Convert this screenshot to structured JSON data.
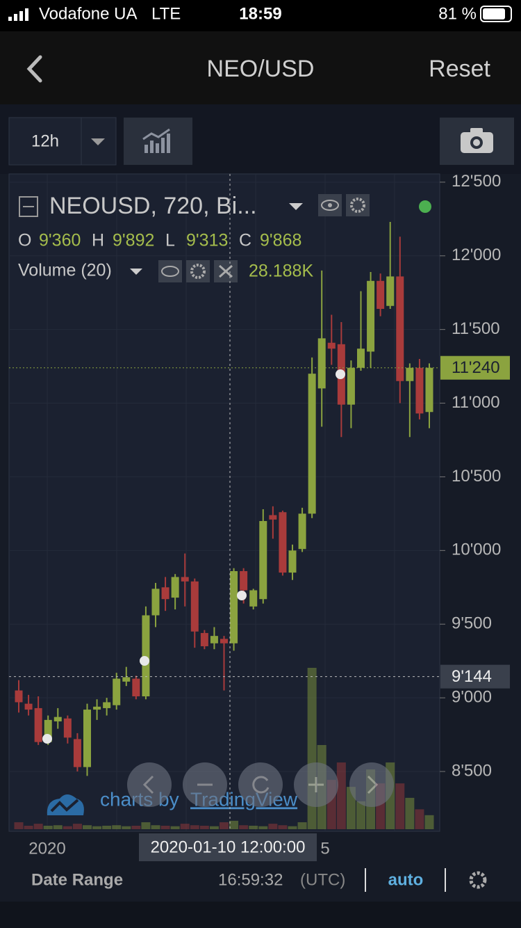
{
  "status_bar": {
    "carrier": "Vodafone UA",
    "network": "LTE",
    "time": "18:59",
    "battery": "81 %"
  },
  "nav": {
    "title": "NEO/USD",
    "reset": "Reset"
  },
  "toolbar": {
    "interval": "12h"
  },
  "chart": {
    "type": "candlestick",
    "legend": {
      "symbol": "NEOUSD, 720, Bi...",
      "ohlc": [
        {
          "key": "O",
          "value": "9'360"
        },
        {
          "key": "H",
          "value": "9'892"
        },
        {
          "key": "L",
          "value": "9'313"
        },
        {
          "key": "C",
          "value": "9'868"
        }
      ]
    },
    "volume_legend": {
      "name": "Volume (20)",
      "value": "28.188K"
    },
    "candles": {
      "open": [
        9050,
        8960,
        8930,
        8700,
        8840,
        8860,
        8720,
        8530,
        8920,
        8930,
        8950,
        9110,
        9130,
        9010,
        9560,
        9750,
        9680,
        9820,
        9790,
        9440,
        9370,
        9400,
        9370,
        9860,
        9620,
        9670,
        10240,
        10260,
        9850,
        10010,
        10250,
        11100,
        11410,
        11400,
        10990,
        11240,
        11350,
        11830,
        11660,
        11860,
        11150,
        11240,
        10940
      ],
      "high": [
        9120,
        9020,
        9010,
        8880,
        8930,
        8880,
        8760,
        8960,
        8990,
        9000,
        9170,
        9210,
        9150,
        9620,
        9780,
        9820,
        9840,
        9980,
        9810,
        9460,
        9480,
        9420,
        9880,
        9880,
        9740,
        10280,
        10300,
        10270,
        10040,
        10290,
        11310,
        11900,
        11600,
        11550,
        11290,
        11760,
        11890,
        11880,
        12230,
        12130,
        11270,
        11300,
        11270
      ],
      "low": [
        8900,
        8880,
        8680,
        8680,
        8790,
        8690,
        8500,
        8470,
        8850,
        8880,
        8920,
        9080,
        8990,
        8990,
        9480,
        9590,
        9600,
        9620,
        9340,
        9330,
        9330,
        9050,
        9320,
        9640,
        9600,
        9640,
        10080,
        9830,
        9800,
        9990,
        10220,
        10840,
        11260,
        10770,
        10830,
        11220,
        11240,
        11590,
        11640,
        11000,
        10770,
        10890,
        10830
      ],
      "close": [
        8970,
        8920,
        8700,
        8850,
        8870,
        8730,
        8530,
        8920,
        8940,
        8970,
        9130,
        9140,
        9010,
        9560,
        9740,
        9670,
        9820,
        9790,
        9450,
        9350,
        9420,
        9370,
        9860,
        9730,
        9730,
        10200,
        10210,
        9850,
        10000,
        10250,
        11200,
        11440,
        11370,
        10990,
        11240,
        11370,
        11830,
        11640,
        11860,
        11150,
        11240,
        10930,
        11240
      ]
    },
    "volume": [
      14,
      7,
      11,
      7,
      8,
      6,
      11,
      8,
      6,
      7,
      8,
      6,
      7,
      14,
      8,
      7,
      6,
      11,
      8,
      7,
      6,
      14,
      17,
      8,
      7,
      6,
      11,
      8,
      6,
      14,
      324,
      169,
      99,
      134,
      85,
      56,
      120,
      92,
      134,
      92,
      63,
      40,
      28.188
    ],
    "up_color": "#8ba33f",
    "down_color": "#a93b3b",
    "ylim": [
      8094,
      12556
    ],
    "yticks": [
      {
        "value": 8500,
        "label": "8'500"
      },
      {
        "value": 9000,
        "label": "9'000"
      },
      {
        "value": 9500,
        "label": "9'500"
      },
      {
        "value": 10000,
        "label": "10'000"
      },
      {
        "value": 10500,
        "label": "10'500"
      },
      {
        "value": 11000,
        "label": "11'000"
      },
      {
        "value": 11500,
        "label": "11'500"
      },
      {
        "value": 12000,
        "label": "12'000"
      },
      {
        "value": 12500,
        "label": "12'500"
      }
    ],
    "last_price": {
      "value": 11240,
      "label": "11'240"
    },
    "crosshair": {
      "price": {
        "value": 9144,
        "label": "9'144"
      },
      "time": "2020-01-10 12:00:00"
    },
    "xticks": [
      "2020",
      "5"
    ],
    "watermark": {
      "prefix": "charts by",
      "brand": "TradingView"
    }
  },
  "footer": {
    "date_range": "Date Range",
    "clock": "16:59:32",
    "timezone": "(UTC)",
    "scale": "auto"
  }
}
